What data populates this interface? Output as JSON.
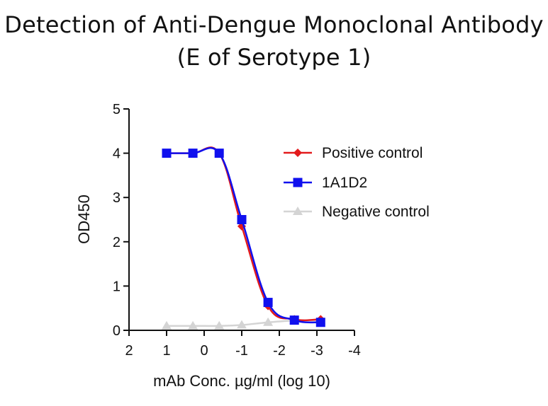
{
  "chart_data": {
    "type": "line",
    "title": "Detection of Anti-Dengue Monoclonal Antibody",
    "subtitle": "(E of Serotype 1)",
    "xlabel": "mAb Conc. µg/ml (log 10)",
    "ylabel": "OD450",
    "xlim": [
      2,
      -4
    ],
    "ylim": [
      0,
      5
    ],
    "x_ticks": [
      2,
      1,
      0,
      -1,
      -2,
      -3,
      -4
    ],
    "x_tick_labels": [
      "2",
      "1",
      "0",
      "-1",
      "-2",
      "-3",
      "-4"
    ],
    "y_ticks": [
      0,
      1,
      2,
      3,
      4,
      5
    ],
    "y_tick_labels": [
      "0",
      "1",
      "2",
      "3",
      "4",
      "5"
    ],
    "grid": false,
    "legend_position": "top-right",
    "series": [
      {
        "name": "Positive control",
        "color": "#e31a1c",
        "marker": "diamond",
        "x": [
          1.0,
          0.3,
          -0.4,
          -1.0,
          -1.7,
          -2.4,
          -3.1
        ],
        "y": [
          4.0,
          4.0,
          4.0,
          2.35,
          0.55,
          0.25,
          0.25
        ]
      },
      {
        "name": "1A1D2",
        "color": "#1010ee",
        "marker": "square",
        "x": [
          1.0,
          0.3,
          -0.4,
          -1.0,
          -1.7,
          -2.4,
          -3.1
        ],
        "y": [
          4.0,
          4.0,
          4.0,
          2.5,
          0.63,
          0.23,
          0.18
        ]
      },
      {
        "name": "Negative control",
        "color": "#d4d4d4",
        "marker": "triangle",
        "x": [
          1.0,
          0.3,
          -0.4,
          -1.0,
          -1.7,
          -2.4,
          -3.1
        ],
        "y": [
          0.1,
          0.1,
          0.1,
          0.12,
          0.18,
          0.22,
          0.22
        ]
      }
    ]
  }
}
